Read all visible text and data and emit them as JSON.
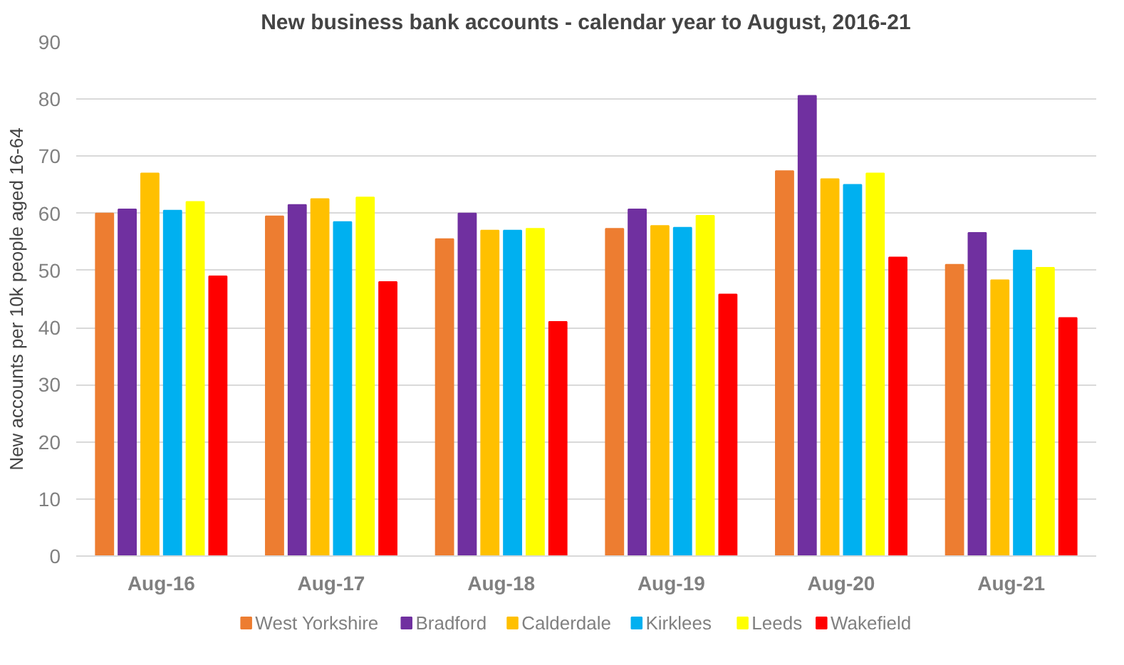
{
  "chart_data": {
    "type": "bar",
    "title": "New business bank accounts - calendar year to August, 2016-21",
    "ylabel": "New accounts per 10k people aged 16-64",
    "categories": [
      "Aug-16",
      "Aug-17",
      "Aug-18",
      "Aug-19",
      "Aug-20",
      "Aug-21"
    ],
    "series": [
      {
        "name": "West Yorkshire",
        "color": "#ed7d31",
        "values": [
          60,
          59.5,
          55.5,
          57.3,
          67.4,
          51
        ]
      },
      {
        "name": "Bradford",
        "color": "#7030a0",
        "values": [
          60.7,
          61.5,
          60,
          60.7,
          80.6,
          56.6
        ]
      },
      {
        "name": "Calderdale",
        "color": "#ffc000",
        "values": [
          67,
          62.5,
          57,
          57.8,
          66,
          48.3
        ]
      },
      {
        "name": "Kirklees",
        "color": "#00b0f0",
        "values": [
          60.5,
          58.5,
          57,
          57.5,
          65,
          53.5
        ]
      },
      {
        "name": "Leeds",
        "color": "#ffff00",
        "values": [
          62,
          62.8,
          57.3,
          59.6,
          67,
          50.5
        ]
      },
      {
        "name": "Wakefield",
        "color": "#ff0000",
        "values": [
          49,
          48,
          41,
          45.8,
          52.3,
          41.7
        ]
      }
    ],
    "ylim": [
      0,
      90
    ],
    "yticks": [
      0,
      10,
      20,
      30,
      40,
      50,
      60,
      70,
      80,
      90
    ],
    "grid": "y",
    "legend": "bottom"
  }
}
